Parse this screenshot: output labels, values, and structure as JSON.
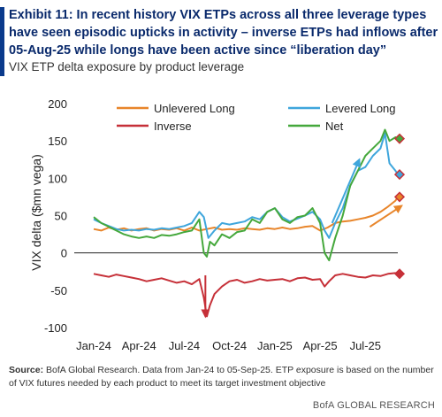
{
  "header": {
    "title": "Exhibit 11: In recent history VIX ETPs across all three leverage types have seen episodic upticks in activity – inverse ETPs had inflows after 05-Aug-25 while longs have been active since “liberation day”",
    "subtitle": "VIX ETP delta exposure by product leverage"
  },
  "footer": {
    "source_label": "Source:",
    "source_text": " BofA Global Research.  Data from Jan-24 to 05-Sep-25.  ETP exposure is based on the number of VIX futures needed by each product to meet its target investment objective",
    "credit": "BofA GLOBAL RESEARCH"
  },
  "chart_data": {
    "type": "line",
    "title": "",
    "xlabel": "",
    "ylabel": "VIX delta ($mn vega)",
    "ylim": [
      -100,
      200
    ],
    "yticks": [
      -100,
      -50,
      0,
      50,
      100,
      150,
      200
    ],
    "xticks": [
      "Jan-24",
      "Apr-24",
      "Jul-24",
      "Oct-24",
      "Jan-25",
      "Apr-25",
      "Jul-25"
    ],
    "xticks_month_index": [
      0,
      3,
      6,
      9,
      12,
      15,
      18
    ],
    "x_range_months": [
      0,
      20.15
    ],
    "legend_position": "top",
    "series": [
      {
        "name": "Unlevered Long",
        "color": "#e8852a",
        "points": [
          [
            0,
            32
          ],
          [
            0.5,
            30
          ],
          [
            1,
            34
          ],
          [
            1.5,
            31
          ],
          [
            2,
            33
          ],
          [
            2.5,
            30
          ],
          [
            3,
            32
          ],
          [
            3.5,
            33
          ],
          [
            4,
            30
          ],
          [
            4.5,
            32
          ],
          [
            5,
            31
          ],
          [
            5.5,
            33
          ],
          [
            6,
            30
          ],
          [
            6.5,
            34
          ],
          [
            7,
            30
          ],
          [
            7.5,
            32
          ],
          [
            8,
            34
          ],
          [
            8.5,
            31
          ],
          [
            9,
            32
          ],
          [
            9.5,
            31
          ],
          [
            10,
            33
          ],
          [
            10.5,
            32
          ],
          [
            11,
            31
          ],
          [
            11.5,
            33
          ],
          [
            12,
            32
          ],
          [
            12.5,
            34
          ],
          [
            13,
            32
          ],
          [
            13.5,
            33
          ],
          [
            14,
            35
          ],
          [
            14.5,
            36
          ],
          [
            15,
            30
          ],
          [
            15.5,
            34
          ],
          [
            16,
            40
          ],
          [
            16.5,
            42
          ],
          [
            17,
            43
          ],
          [
            17.5,
            45
          ],
          [
            18,
            47
          ],
          [
            18.5,
            50
          ],
          [
            19,
            55
          ],
          [
            19.5,
            62
          ],
          [
            20,
            70
          ],
          [
            20.15,
            75
          ]
        ]
      },
      {
        "name": "Levered Long",
        "color": "#3fa6dc",
        "points": [
          [
            0,
            45
          ],
          [
            0.5,
            40
          ],
          [
            1,
            36
          ],
          [
            1.5,
            32
          ],
          [
            2,
            30
          ],
          [
            2.5,
            31
          ],
          [
            3,
            30
          ],
          [
            3.5,
            32
          ],
          [
            4,
            31
          ],
          [
            4.5,
            33
          ],
          [
            5,
            32
          ],
          [
            5.5,
            34
          ],
          [
            6,
            36
          ],
          [
            6.5,
            40
          ],
          [
            7,
            55
          ],
          [
            7.3,
            48
          ],
          [
            7.6,
            20
          ],
          [
            8,
            30
          ],
          [
            8.5,
            40
          ],
          [
            9,
            38
          ],
          [
            9.5,
            40
          ],
          [
            10,
            42
          ],
          [
            10.5,
            48
          ],
          [
            11,
            45
          ],
          [
            11.5,
            55
          ],
          [
            12,
            60
          ],
          [
            12.5,
            48
          ],
          [
            13,
            42
          ],
          [
            13.5,
            46
          ],
          [
            14,
            50
          ],
          [
            14.5,
            55
          ],
          [
            15,
            45
          ],
          [
            15.3,
            30
          ],
          [
            15.6,
            20
          ],
          [
            16,
            40
          ],
          [
            16.5,
            60
          ],
          [
            17,
            90
          ],
          [
            17.5,
            110
          ],
          [
            18,
            115
          ],
          [
            18.5,
            130
          ],
          [
            19,
            140
          ],
          [
            19.3,
            160
          ],
          [
            19.6,
            120
          ],
          [
            20,
            110
          ],
          [
            20.15,
            105
          ]
        ]
      },
      {
        "name": "Inverse",
        "color": "#c63038",
        "points": [
          [
            0,
            -28
          ],
          [
            0.5,
            -30
          ],
          [
            1,
            -32
          ],
          [
            1.5,
            -29
          ],
          [
            2,
            -31
          ],
          [
            2.5,
            -33
          ],
          [
            3,
            -35
          ],
          [
            3.5,
            -38
          ],
          [
            4,
            -36
          ],
          [
            4.5,
            -34
          ],
          [
            5,
            -37
          ],
          [
            5.5,
            -40
          ],
          [
            6,
            -38
          ],
          [
            6.5,
            -42
          ],
          [
            7,
            -35
          ],
          [
            7.3,
            -60
          ],
          [
            7.5,
            -85
          ],
          [
            7.7,
            -70
          ],
          [
            8,
            -55
          ],
          [
            8.5,
            -45
          ],
          [
            9,
            -38
          ],
          [
            9.5,
            -36
          ],
          [
            10,
            -40
          ],
          [
            10.5,
            -38
          ],
          [
            11,
            -35
          ],
          [
            11.5,
            -37
          ],
          [
            12,
            -36
          ],
          [
            12.5,
            -35
          ],
          [
            13,
            -38
          ],
          [
            13.5,
            -34
          ],
          [
            14,
            -33
          ],
          [
            14.5,
            -36
          ],
          [
            15,
            -35
          ],
          [
            15.3,
            -45
          ],
          [
            15.6,
            -38
          ],
          [
            16,
            -30
          ],
          [
            16.5,
            -28
          ],
          [
            17,
            -30
          ],
          [
            17.5,
            -32
          ],
          [
            18,
            -33
          ],
          [
            18.5,
            -30
          ],
          [
            19,
            -31
          ],
          [
            19.5,
            -28
          ],
          [
            20,
            -27
          ],
          [
            20.15,
            -28
          ]
        ]
      },
      {
        "name": "Net",
        "color": "#45a83c",
        "points": [
          [
            0,
            48
          ],
          [
            0.5,
            40
          ],
          [
            1,
            35
          ],
          [
            1.5,
            30
          ],
          [
            2,
            25
          ],
          [
            2.5,
            22
          ],
          [
            3,
            20
          ],
          [
            3.5,
            22
          ],
          [
            4,
            20
          ],
          [
            4.5,
            24
          ],
          [
            5,
            23
          ],
          [
            5.5,
            25
          ],
          [
            6,
            28
          ],
          [
            6.5,
            30
          ],
          [
            7,
            45
          ],
          [
            7.3,
            0
          ],
          [
            7.5,
            -5
          ],
          [
            7.7,
            15
          ],
          [
            8,
            10
          ],
          [
            8.5,
            25
          ],
          [
            9,
            20
          ],
          [
            9.5,
            28
          ],
          [
            10,
            30
          ],
          [
            10.5,
            45
          ],
          [
            11,
            40
          ],
          [
            11.5,
            55
          ],
          [
            12,
            60
          ],
          [
            12.5,
            45
          ],
          [
            13,
            40
          ],
          [
            13.5,
            48
          ],
          [
            14,
            50
          ],
          [
            14.5,
            60
          ],
          [
            15,
            40
          ],
          [
            15.3,
            0
          ],
          [
            15.6,
            -10
          ],
          [
            16,
            20
          ],
          [
            16.5,
            50
          ],
          [
            17,
            90
          ],
          [
            17.5,
            110
          ],
          [
            18,
            130
          ],
          [
            18.5,
            140
          ],
          [
            19,
            150
          ],
          [
            19.3,
            165
          ],
          [
            19.6,
            150
          ],
          [
            20,
            155
          ],
          [
            20.15,
            153
          ]
        ]
      }
    ],
    "end_markers": [
      {
        "series": "Unlevered Long",
        "value": 75
      },
      {
        "series": "Levered Long",
        "value": 105
      },
      {
        "series": "Inverse",
        "value": -28
      },
      {
        "series": "Net",
        "value": 153
      }
    ],
    "annotation_arrows": [
      {
        "color": "#c63038",
        "from": [
          7.4,
          -30
        ],
        "to": [
          7.4,
          -85
        ]
      },
      {
        "color": "#3fa6dc",
        "from": [
          15.8,
          40
        ],
        "to": [
          17.6,
          125
        ]
      },
      {
        "color": "#e8852a",
        "from": [
          18.3,
          35
        ],
        "to": [
          20.4,
          63
        ]
      }
    ]
  }
}
